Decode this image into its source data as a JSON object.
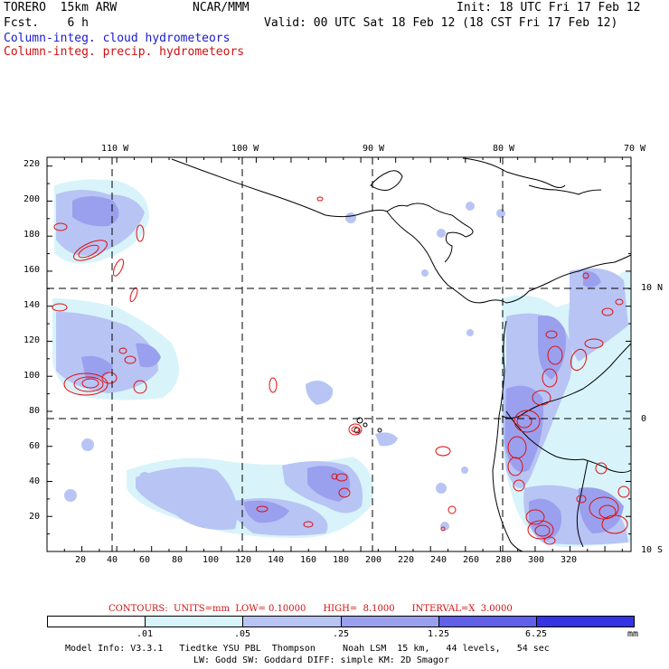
{
  "header": {
    "model": "TORERO  15km ARW",
    "org": "NCAR/MMM",
    "fcst": "Fcst.    6 h",
    "init": "Init: 18 UTC Fri 17 Feb 12",
    "valid": "Valid: 00 UTC Sat 18 Feb 12 (18 CST Fri 17 Feb 12)",
    "field_cloud": "Column-integ. cloud hydrometeors",
    "field_precip": "Column-integ. precip. hydrometeors"
  },
  "map": {
    "top_longitudes": [
      "110 W",
      "100 W",
      "90 W",
      "80 W",
      "70 W"
    ],
    "right_latitudes": [
      "10 N",
      "0",
      "10 S"
    ],
    "y_ticks": [
      "220",
      "200",
      "180",
      "160",
      "140",
      "120",
      "100",
      "80",
      "60",
      "40",
      "20"
    ],
    "x_ticks": [
      "20",
      "40",
      "60",
      "80",
      "100",
      "120",
      "140",
      "160",
      "180",
      "200",
      "220",
      "240",
      "260",
      "280",
      "300",
      "320"
    ],
    "grid_x_range": [
      0,
      335
    ],
    "grid_y_range": [
      0,
      225
    ]
  },
  "contours": {
    "text": "CONTOURS:  UNITS=mm  LOW= 0.10000      HIGH=  8.1000      INTERVAL=X  3.0000"
  },
  "legend": {
    "labels": [
      ".01",
      ".05",
      ".25",
      "1.25",
      "6.25",
      "mm"
    ],
    "colors": [
      "#ffffff",
      "#d8f4fa",
      "#b8c4f4",
      "#9aa0ee",
      "#6060e8",
      "#3434e4",
      "#1010e0"
    ]
  },
  "footer": {
    "line1": "Model Info: V3.3.1   Tiedtke YSU PBL  Thompson     Noah LSM  15 km,   44 levels,   54 sec",
    "line2": "LW: Godd SW: Goddard DIFF: simple KM: 2D Smagor"
  }
}
